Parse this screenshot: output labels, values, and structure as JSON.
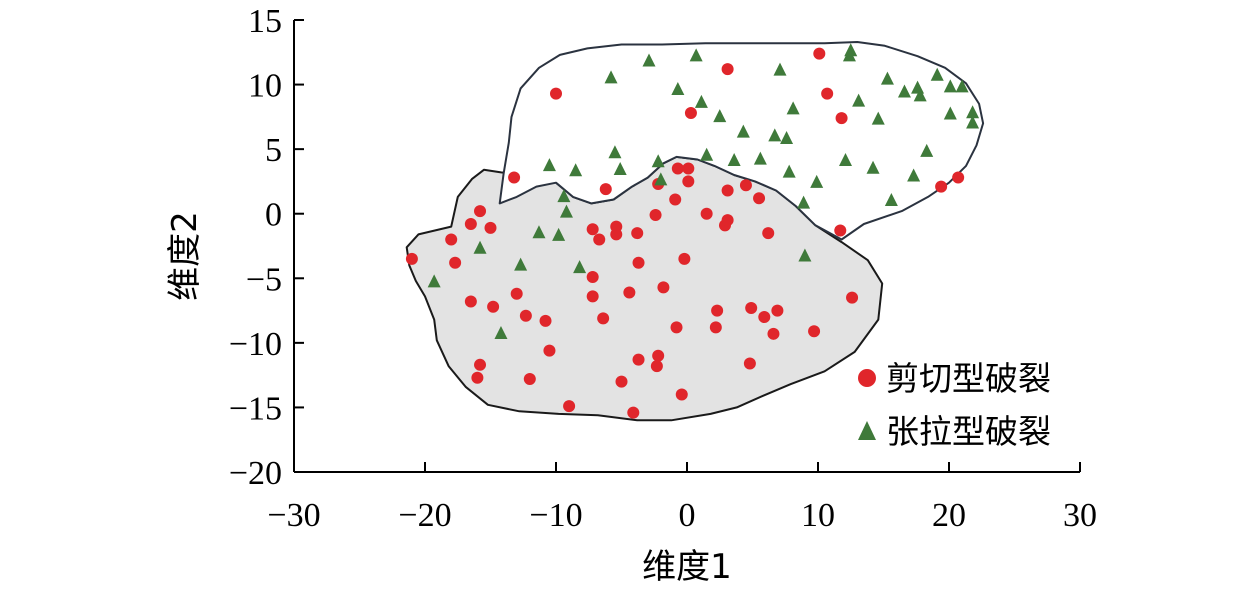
{
  "chart_data": {
    "type": "scatter",
    "xlabel": "维度1",
    "ylabel": "维度2",
    "xlim": [
      -30,
      30
    ],
    "ylim": [
      -20,
      15
    ],
    "xticks": [
      -30,
      -20,
      -10,
      0,
      10,
      20,
      30
    ],
    "yticks": [
      -20,
      -15,
      -10,
      -5,
      0,
      5,
      10,
      15
    ],
    "xtick_labels": [
      "−30",
      "−20",
      "−10",
      "0",
      "10",
      "20",
      "30"
    ],
    "ytick_labels": [
      "−20",
      "−15",
      "−10",
      "−5",
      "0",
      "5",
      "10",
      "15"
    ],
    "legend_position": "bottom-right",
    "series": [
      {
        "name": "剪切型破裂",
        "marker": "circle",
        "color": "#e0262b",
        "points": [
          [
            -21,
            -3.5
          ],
          [
            -18,
            -2
          ],
          [
            -17.7,
            -3.8
          ],
          [
            -16.5,
            -0.8
          ],
          [
            -15.8,
            0.2
          ],
          [
            -15.8,
            -11.7
          ],
          [
            -16,
            -12.7
          ],
          [
            -15,
            -1.1
          ],
          [
            -14.8,
            -7.2
          ],
          [
            -16.5,
            -6.8
          ],
          [
            -13,
            -6.2
          ],
          [
            -12.3,
            -7.9
          ],
          [
            -12,
            -12.8
          ],
          [
            -10.8,
            -8.3
          ],
          [
            -10.5,
            -10.6
          ],
          [
            -9,
            -14.9
          ],
          [
            -13.2,
            2.8
          ],
          [
            -10,
            9.3
          ],
          [
            -7.2,
            -1.2
          ],
          [
            -7.2,
            -4.9
          ],
          [
            -7.2,
            -6.4
          ],
          [
            -6.7,
            -2
          ],
          [
            -6.4,
            -8.1
          ],
          [
            -6.2,
            1.9
          ],
          [
            -5.4,
            -1
          ],
          [
            -5.4,
            -1.6
          ],
          [
            -5,
            -13
          ],
          [
            -4.4,
            -6.1
          ],
          [
            -4.1,
            -15.4
          ],
          [
            -3.8,
            -1.5
          ],
          [
            -3.7,
            -3.8
          ],
          [
            -3.7,
            -11.3
          ],
          [
            -2.4,
            -0.1
          ],
          [
            -2.2,
            -11
          ],
          [
            -2.3,
            -11.8
          ],
          [
            -2.2,
            2.3
          ],
          [
            -1.8,
            -5.7
          ],
          [
            -0.8,
            -8.8
          ],
          [
            -0.9,
            1.1
          ],
          [
            -0.7,
            3.5
          ],
          [
            -0.4,
            -14
          ],
          [
            -0.2,
            -3.5
          ],
          [
            0.1,
            3.5
          ],
          [
            0.1,
            2.5
          ],
          [
            0.3,
            7.8
          ],
          [
            1.5,
            0
          ],
          [
            2.2,
            -8.8
          ],
          [
            2.3,
            -7.5
          ],
          [
            2.9,
            -0.9
          ],
          [
            3.1,
            -0.5
          ],
          [
            3.1,
            1.8
          ],
          [
            3.1,
            11.2
          ],
          [
            4.5,
            2.2
          ],
          [
            4.8,
            -11.6
          ],
          [
            4.9,
            -7.3
          ],
          [
            5.5,
            1.2
          ],
          [
            5.9,
            -8
          ],
          [
            6.2,
            -1.5
          ],
          [
            6.6,
            -9.3
          ],
          [
            6.9,
            -7.5
          ],
          [
            9.7,
            -9.1
          ],
          [
            10.1,
            12.4
          ],
          [
            10.7,
            9.3
          ],
          [
            11.7,
            -1.3
          ],
          [
            11.8,
            7.4
          ],
          [
            12.6,
            -6.5
          ],
          [
            19.4,
            2.1
          ],
          [
            20.7,
            2.8
          ]
        ]
      },
      {
        "name": "张拉型破裂",
        "marker": "triangle",
        "color": "#3f7a3a",
        "points": [
          [
            -19.3,
            -5.2
          ],
          [
            -15.8,
            -2.6
          ],
          [
            -14.2,
            -9.2
          ],
          [
            -12.7,
            -3.9
          ],
          [
            -11.3,
            -1.4
          ],
          [
            -10.5,
            3.8
          ],
          [
            -9.8,
            -1.6
          ],
          [
            -9.4,
            1.4
          ],
          [
            -9.2,
            0.2
          ],
          [
            -8.5,
            3.4
          ],
          [
            -8.2,
            -4.1
          ],
          [
            -5.8,
            10.6
          ],
          [
            -5.5,
            4.8
          ],
          [
            -5.1,
            3.5
          ],
          [
            -2.9,
            11.9
          ],
          [
            -2.2,
            4.1
          ],
          [
            -2,
            2.7
          ],
          [
            -0.7,
            9.7
          ],
          [
            0.7,
            12.3
          ],
          [
            1.1,
            8.7
          ],
          [
            1.5,
            4.6
          ],
          [
            2.5,
            7.6
          ],
          [
            3.6,
            4.2
          ],
          [
            4.3,
            6.4
          ],
          [
            5.6,
            4.3
          ],
          [
            6.7,
            6.1
          ],
          [
            7.1,
            11.2
          ],
          [
            7.6,
            5.9
          ],
          [
            7.8,
            3.3
          ],
          [
            8.1,
            8.2
          ],
          [
            8.9,
            0.9
          ],
          [
            9,
            -3.2
          ],
          [
            9.9,
            2.5
          ],
          [
            12.1,
            4.2
          ],
          [
            12.4,
            12.3
          ],
          [
            12.5,
            12.7
          ],
          [
            13.1,
            8.8
          ],
          [
            14.2,
            3.6
          ],
          [
            14.6,
            7.4
          ],
          [
            15.3,
            10.5
          ],
          [
            15.6,
            1.1
          ],
          [
            16.6,
            9.5
          ],
          [
            17.3,
            3
          ],
          [
            17.6,
            9.8
          ],
          [
            17.8,
            9.2
          ],
          [
            18.3,
            4.9
          ],
          [
            19.1,
            10.8
          ],
          [
            20.1,
            7.8
          ],
          [
            20.1,
            9.9
          ],
          [
            21,
            9.9
          ],
          [
            21.8,
            7.1
          ],
          [
            21.8,
            7.9
          ]
        ]
      }
    ],
    "regions": [
      {
        "name": "剪切型破裂",
        "fill": "#e3e3e3",
        "outline": [
          [
            -18,
            -1
          ],
          [
            -17.5,
            1.3
          ],
          [
            -16.4,
            2.7
          ],
          [
            -15.5,
            3.4
          ],
          [
            -14.2,
            3.2
          ],
          [
            -12.3,
            3
          ],
          [
            -10,
            2.4
          ],
          [
            -8.7,
            1.3
          ],
          [
            -7.3,
            0.8
          ],
          [
            -5.6,
            1.1
          ],
          [
            -4.2,
            2.1
          ],
          [
            -3,
            2.8
          ],
          [
            -1.8,
            3.9
          ],
          [
            -0.8,
            4.4
          ],
          [
            0.8,
            4.2
          ],
          [
            2.1,
            3.7
          ],
          [
            3.6,
            3
          ],
          [
            5.2,
            2.5
          ],
          [
            6.8,
            1.8
          ],
          [
            8.3,
            0.6
          ],
          [
            9.8,
            -0.9
          ],
          [
            11.8,
            -2.2
          ],
          [
            13.8,
            -3.6
          ],
          [
            14.9,
            -5.4
          ],
          [
            14.6,
            -8.2
          ],
          [
            12.8,
            -10.7
          ],
          [
            10.5,
            -12.2
          ],
          [
            7.9,
            -13.2
          ],
          [
            5.8,
            -14.1
          ],
          [
            3.8,
            -15
          ],
          [
            1.8,
            -15.5
          ],
          [
            -1.2,
            -16
          ],
          [
            -3.8,
            -16
          ],
          [
            -6.8,
            -15.6
          ],
          [
            -9.8,
            -15.5
          ],
          [
            -12.8,
            -15.3
          ],
          [
            -15.2,
            -14.8
          ],
          [
            -16.9,
            -13.4
          ],
          [
            -18.2,
            -11.8
          ],
          [
            -19.1,
            -9.8
          ],
          [
            -19.3,
            -8.2
          ],
          [
            -20,
            -6.4
          ],
          [
            -20.7,
            -5.2
          ],
          [
            -21.2,
            -4
          ],
          [
            -21.4,
            -2.6
          ],
          [
            -20.5,
            -1.6
          ]
        ]
      },
      {
        "name": "张拉型破裂",
        "fill": "#ffffff",
        "outline": [
          [
            -14.3,
            0.8
          ],
          [
            -14,
            3.1
          ],
          [
            -13.6,
            5.5
          ],
          [
            -13.4,
            7.5
          ],
          [
            -12.7,
            9.7
          ],
          [
            -11.3,
            11.3
          ],
          [
            -9.7,
            12.3
          ],
          [
            -7.6,
            12.8
          ],
          [
            -5,
            13.1
          ],
          [
            -1.9,
            13.1
          ],
          [
            1.4,
            13.2
          ],
          [
            4.9,
            13.2
          ],
          [
            8,
            13.2
          ],
          [
            10.5,
            13.2
          ],
          [
            13,
            13.3
          ],
          [
            15.1,
            13
          ],
          [
            17.6,
            12.2
          ],
          [
            19.7,
            11.3
          ],
          [
            21.3,
            10.1
          ],
          [
            22.3,
            8.5
          ],
          [
            22.6,
            7
          ],
          [
            22.1,
            5.3
          ],
          [
            21.3,
            3.7
          ],
          [
            20,
            2.4
          ],
          [
            18.4,
            1.3
          ],
          [
            16.4,
            0.2
          ],
          [
            13.5,
            -0.8
          ],
          [
            11.8,
            -2
          ],
          [
            9.8,
            -0.9
          ],
          [
            8.3,
            0.6
          ],
          [
            6.8,
            1.8
          ],
          [
            5.2,
            2.5
          ],
          [
            3.6,
            3
          ],
          [
            2.1,
            3.7
          ],
          [
            0.8,
            4.2
          ],
          [
            -0.8,
            4.4
          ],
          [
            -1.8,
            3.9
          ],
          [
            -3,
            2.8
          ],
          [
            -4.2,
            2.1
          ],
          [
            -5.6,
            1.1
          ],
          [
            -7.3,
            0.8
          ],
          [
            -8.7,
            1.3
          ],
          [
            -10,
            2.4
          ],
          [
            -11.5,
            2.1
          ],
          [
            -13,
            1.3
          ]
        ]
      }
    ]
  }
}
